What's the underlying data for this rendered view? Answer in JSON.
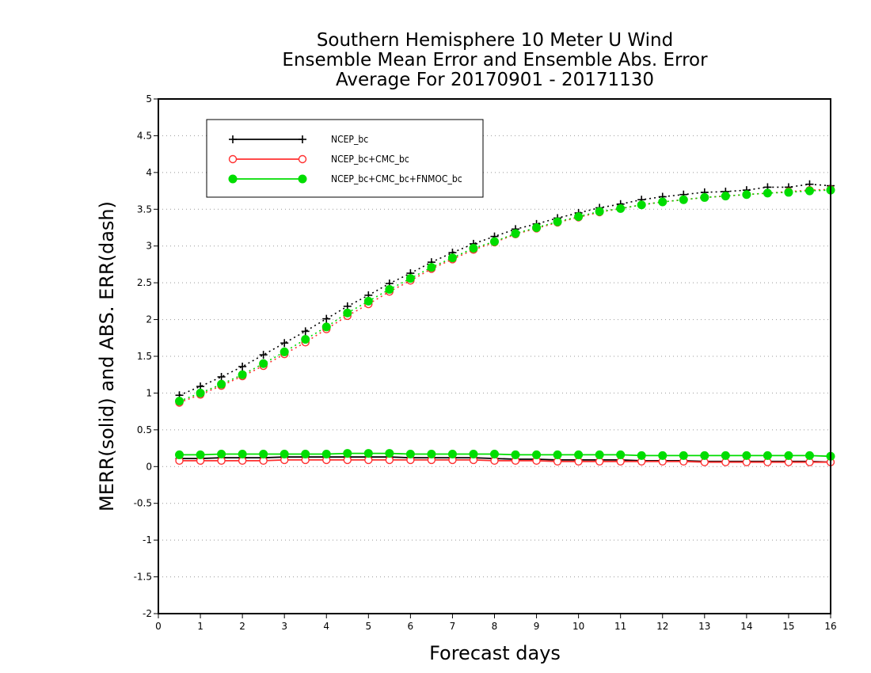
{
  "chart_data": {
    "type": "line",
    "title": [
      "Southern Hemisphere 10 Meter U Wind",
      "Ensemble Mean Error and Ensemble Abs. Error",
      "Average For 20170901 - 20171130"
    ],
    "xlabel": "Forecast days",
    "ylabel": "MERR(solid) and ABS. ERR(dash)",
    "xlim": [
      0,
      16
    ],
    "ylim": [
      -2,
      5
    ],
    "xticks": [
      "0",
      "1",
      "2",
      "3",
      "4",
      "5",
      "6",
      "7",
      "8",
      "9",
      "10",
      "11",
      "12",
      "13",
      "14",
      "15",
      "16"
    ],
    "yticks": [
      "5",
      "4.5",
      "4",
      "3.5",
      "3",
      "2.5",
      "2",
      "1.5",
      "1",
      "0.5",
      "0",
      "-0.5",
      "-1",
      "-1.5",
      "-2"
    ],
    "ytick_values": [
      5,
      4.5,
      4,
      3.5,
      3,
      2.5,
      2,
      1.5,
      1,
      0.5,
      0,
      -0.5,
      -1,
      -1.5,
      -2
    ],
    "grid": true,
    "legend_position": "top-left",
    "x": [
      0.5,
      1,
      1.5,
      2,
      2.5,
      3,
      3.5,
      4,
      4.5,
      5,
      5.5,
      6,
      6.5,
      7,
      7.5,
      8,
      8.5,
      9,
      9.5,
      10,
      10.5,
      11,
      11.5,
      12,
      12.5,
      13,
      13.5,
      14,
      14.5,
      15,
      15.5,
      16
    ],
    "series": [
      {
        "name": "NCEP_bc",
        "color": "#000000",
        "marker": "plus",
        "abs_err": [
          0.97,
          1.09,
          1.22,
          1.36,
          1.52,
          1.68,
          1.84,
          2.01,
          2.18,
          2.33,
          2.49,
          2.63,
          2.78,
          2.91,
          3.03,
          3.13,
          3.23,
          3.3,
          3.38,
          3.45,
          3.52,
          3.57,
          3.63,
          3.67,
          3.7,
          3.73,
          3.74,
          3.76,
          3.8,
          3.8,
          3.84,
          3.82
        ],
        "mean_err": [
          0.11,
          0.11,
          0.12,
          0.12,
          0.12,
          0.13,
          0.13,
          0.13,
          0.13,
          0.13,
          0.13,
          0.12,
          0.12,
          0.12,
          0.12,
          0.11,
          0.1,
          0.1,
          0.09,
          0.09,
          0.09,
          0.09,
          0.08,
          0.08,
          0.08,
          0.07,
          0.07,
          0.07,
          0.07,
          0.07,
          0.07,
          0.06
        ]
      },
      {
        "name": "NCEP_bc+CMC_bc",
        "color": "#ff3030",
        "marker": "open-circle",
        "abs_err": [
          0.87,
          0.98,
          1.1,
          1.23,
          1.37,
          1.53,
          1.69,
          1.87,
          2.05,
          2.21,
          2.38,
          2.53,
          2.69,
          2.82,
          2.95,
          3.05,
          3.16,
          3.24,
          3.32,
          3.39,
          3.46,
          3.51,
          3.56,
          3.6,
          3.63,
          3.66,
          3.68,
          3.7,
          3.72,
          3.74,
          3.76,
          3.77
        ],
        "mean_err": [
          0.08,
          0.08,
          0.08,
          0.08,
          0.08,
          0.09,
          0.09,
          0.09,
          0.09,
          0.09,
          0.09,
          0.09,
          0.09,
          0.09,
          0.09,
          0.08,
          0.08,
          0.08,
          0.07,
          0.07,
          0.07,
          0.07,
          0.07,
          0.07,
          0.07,
          0.06,
          0.06,
          0.06,
          0.06,
          0.06,
          0.06,
          0.06
        ]
      },
      {
        "name": "NCEP_bc+CMC_bc+FNMOC_bc",
        "color": "#00dd00",
        "marker": "filled-circle",
        "abs_err": [
          0.89,
          1.0,
          1.12,
          1.25,
          1.4,
          1.56,
          1.73,
          1.9,
          2.09,
          2.25,
          2.41,
          2.56,
          2.71,
          2.84,
          2.97,
          3.06,
          3.17,
          3.25,
          3.33,
          3.4,
          3.47,
          3.51,
          3.56,
          3.6,
          3.63,
          3.66,
          3.68,
          3.7,
          3.72,
          3.73,
          3.75,
          3.76
        ],
        "mean_err": [
          0.16,
          0.16,
          0.17,
          0.17,
          0.17,
          0.17,
          0.17,
          0.17,
          0.18,
          0.18,
          0.18,
          0.17,
          0.17,
          0.17,
          0.17,
          0.17,
          0.16,
          0.16,
          0.16,
          0.16,
          0.16,
          0.16,
          0.15,
          0.15,
          0.15,
          0.15,
          0.15,
          0.15,
          0.15,
          0.15,
          0.15,
          0.14
        ]
      }
    ]
  }
}
